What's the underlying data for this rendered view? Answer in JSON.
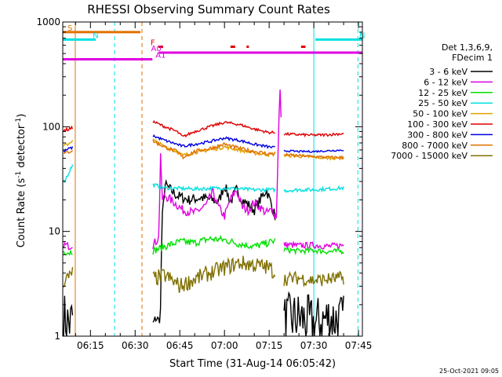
{
  "chart_data": {
    "type": "line",
    "title": "RHESSI Observing Summary Count Rates",
    "xlabel": "Start Time (31-Aug-14 06:05:42)",
    "ylabel_main": "Count Rate (s",
    "ylabel_sup": "-1",
    "ylabel_rest": " detector",
    "ylabel_end": ")",
    "x_start_minutes": 365.7,
    "xlim": [
      365.7,
      466.3
    ],
    "ylim": [
      1,
      1000
    ],
    "yscale": "log",
    "x_ticks": [
      {
        "t": 375,
        "label": "06:15"
      },
      {
        "t": 390,
        "label": "06:30"
      },
      {
        "t": 405,
        "label": "06:45"
      },
      {
        "t": 420,
        "label": "07:00"
      },
      {
        "t": 435,
        "label": "07:15"
      },
      {
        "t": 450,
        "label": "07:30"
      },
      {
        "t": 465,
        "label": "07:45"
      }
    ],
    "y_ticks": [
      {
        "v": 1,
        "label": "1"
      },
      {
        "v": 10,
        "label": "10"
      },
      {
        "v": 100,
        "label": "100"
      },
      {
        "v": 1000,
        "label": "1000"
      }
    ],
    "legend_header": [
      "Det 1,3,6,9,",
      "FDecim 1"
    ],
    "legend_placement": "right",
    "series": [
      {
        "name": "3 - 6 keV",
        "color": "#000000",
        "segments": [
          {
            "x": [
              366,
              368,
              369
            ],
            "y": [
              1.5,
              1.3,
              1.5
            ],
            "noise": 0.6
          },
          {
            "x": [
              396,
              397,
              398,
              398.5,
              399,
              400,
              404,
              408,
              412,
              416,
              418,
              420,
              422,
              424,
              426,
              428,
              430,
              432,
              434,
              435,
              437
            ],
            "y": [
              1.3,
              1.5,
              1.4,
              1.6,
              12,
              28,
              22,
              20,
              21,
              20,
              19,
              28,
              19,
              25,
              20,
              18,
              16,
              20,
              25,
              21,
              14
            ],
            "noise": 0.12
          },
          {
            "x": [
              440,
              445,
              450,
              455,
              460
            ],
            "y": [
              1.4,
              1.5,
              1.3,
              1.5,
              1.4
            ],
            "noise": 0.6
          }
        ]
      },
      {
        "name": "6 - 12 keV",
        "color": "#e000e0",
        "segments": [
          {
            "x": [
              366,
              368,
              369
            ],
            "y": [
              7.5,
              7.2,
              7.5
            ],
            "noise": 0.08
          },
          {
            "x": [
              396,
              397,
              398,
              398.5,
              399,
              400,
              403,
              406,
              410,
              414,
              416,
              418,
              420,
              422,
              424,
              426,
              428,
              430,
              432,
              434,
              436,
              437.5,
              438,
              438.6,
              439
            ],
            "y": [
              7.5,
              8,
              9,
              60,
              20,
              22,
              19,
              16,
              15,
              18,
              24,
              17,
              14,
              20,
              25,
              17,
              16,
              19,
              17,
              15,
              16,
              14,
              60,
              260,
              120
            ],
            "noise": 0.1
          },
          {
            "x": [
              440,
              445,
              450,
              455,
              460
            ],
            "y": [
              7.5,
              7.3,
              7.4,
              7.2,
              7.4
            ],
            "noise": 0.07
          }
        ]
      },
      {
        "name": "12 - 25 keV",
        "color": "#00e000",
        "segments": [
          {
            "x": [
              366,
              368,
              369
            ],
            "y": [
              6.5,
              6.3,
              6.5
            ],
            "noise": 0.08
          },
          {
            "x": [
              396,
              400,
              405,
              410,
              415,
              420,
              425,
              430,
              435,
              437
            ],
            "y": [
              6.5,
              7.2,
              8.0,
              7.8,
              8.5,
              8.3,
              7.6,
              7.2,
              7.8,
              8.2
            ],
            "noise": 0.08
          },
          {
            "x": [
              440,
              445,
              450,
              455,
              460
            ],
            "y": [
              6.7,
              6.5,
              6.6,
              6.4,
              6.5
            ],
            "noise": 0.06
          }
        ]
      },
      {
        "name": "25 - 50 keV",
        "color": "#00e0e0",
        "segments": [
          {
            "x": [
              366,
              367,
              368,
              369
            ],
            "y": [
              30,
              33,
              38,
              43
            ],
            "noise": 0.05
          },
          {
            "x": [
              396,
              400,
              410,
              420,
              430,
              437
            ],
            "y": [
              28,
              26,
              25.5,
              26,
              25,
              25
            ],
            "noise": 0.04
          },
          {
            "x": [
              440,
              445,
              450,
              455,
              460
            ],
            "y": [
              24.5,
              25,
              25,
              25.5,
              26
            ],
            "noise": 0.04
          }
        ]
      },
      {
        "name": "50 - 100 keV",
        "color": "#e0a000",
        "segments": [
          {
            "x": [
              366,
              368,
              369
            ],
            "y": [
              65,
              70,
              75
            ],
            "noise": 0.04
          },
          {
            "x": [
              396,
              400,
              404,
              406,
              410,
              415,
              420,
              425,
              430,
              435,
              437
            ],
            "y": [
              75,
              64,
              58,
              53,
              57,
              60,
              64,
              60,
              56,
              54,
              55
            ],
            "noise": 0.04
          },
          {
            "x": [
              440,
              445,
              450,
              455,
              460
            ],
            "y": [
              53,
              52,
              51,
              50,
              50
            ],
            "noise": 0.03
          }
        ]
      },
      {
        "name": "100 - 300 keV",
        "color": "#e00000",
        "segments": [
          {
            "x": [
              366,
              368,
              369
            ],
            "y": [
              92,
              95,
              97
            ],
            "noise": 0.04
          },
          {
            "x": [
              396,
              400,
              404,
              406,
              410,
              415,
              420,
              425,
              430,
              435,
              437
            ],
            "y": [
              112,
              100,
              90,
              80,
              90,
              100,
              110,
              105,
              95,
              88,
              88
            ],
            "noise": 0.03
          },
          {
            "x": [
              440,
              445,
              450,
              455,
              460
            ],
            "y": [
              85,
              84,
              83,
              84,
              86
            ],
            "noise": 0.03
          }
        ]
      },
      {
        "name": "300 - 800 keV",
        "color": "#0000e0",
        "segments": [
          {
            "x": [
              366,
              368,
              369
            ],
            "y": [
              58,
              62,
              63
            ],
            "noise": 0.03
          },
          {
            "x": [
              396,
              400,
              404,
              406,
              410,
              415,
              420,
              425,
              430,
              435,
              437
            ],
            "y": [
              82,
              74,
              68,
              65,
              68,
              72,
              78,
              74,
              68,
              64,
              63
            ],
            "noise": 0.03
          },
          {
            "x": [
              440,
              445,
              450,
              455,
              460
            ],
            "y": [
              59,
              58,
              58,
              59,
              60
            ],
            "noise": 0.02
          }
        ]
      },
      {
        "name": "800 - 7000 keV",
        "color": "#e07000",
        "segments": [
          {
            "x": [
              366,
              368,
              369
            ],
            "y": [
              55,
              58,
              60
            ],
            "noise": 0.04
          },
          {
            "x": [
              396,
              400,
              404,
              406,
              410,
              415,
              420,
              425,
              430,
              435,
              437
            ],
            "y": [
              73,
              64,
              58,
              51,
              58,
              62,
              68,
              62,
              58,
              55,
              56
            ],
            "noise": 0.04
          },
          {
            "x": [
              440,
              445,
              450,
              455,
              460
            ],
            "y": [
              54,
              53,
              52,
              51,
              51
            ],
            "noise": 0.03
          }
        ]
      },
      {
        "name": "7000 - 15000 keV",
        "color": "#807000",
        "segments": [
          {
            "x": [
              366,
              368,
              369
            ],
            "y": [
              3.4,
              3.6,
              4.2
            ],
            "noise": 0.18
          },
          {
            "x": [
              396,
              400,
              405,
              410,
              415,
              420,
              425,
              430,
              435,
              437
            ],
            "y": [
              3.5,
              3.8,
              3.0,
              3.5,
              4.0,
              4.5,
              5.0,
              4.8,
              4.5,
              4.0
            ],
            "noise": 0.18
          },
          {
            "x": [
              440,
              445,
              450,
              455,
              460
            ],
            "y": [
              3.5,
              3.6,
              3.4,
              3.5,
              3.6
            ],
            "noise": 0.15
          }
        ]
      }
    ],
    "state_bars": [
      {
        "label": "S",
        "color": "#e07000",
        "x": [
          365.7,
          391.8
        ],
        "y": 800
      },
      {
        "label": "N",
        "color": "#00e0e0",
        "x": [
          365.7,
          376.8
        ],
        "y": 680
      },
      {
        "label": "N",
        "color": "#00e0e0",
        "x": [
          450.5,
          466.3
        ],
        "y": 680
      },
      {
        "label": "F",
        "color": "#e00000",
        "x": [
          397.8,
          399.4
        ],
        "y": 580
      },
      {
        "label": "",
        "color": "#e00000",
        "x": [
          422.0,
          423.6
        ],
        "y": 580
      },
      {
        "label": "",
        "color": "#e00000",
        "x": [
          427.4,
          428.2
        ],
        "y": 580
      },
      {
        "label": "",
        "color": "#e00000",
        "x": [
          445.7,
          447.2
        ],
        "y": 580
      },
      {
        "label": "A0",
        "color": "#e000e0",
        "x": [
          398.0,
          466.3
        ],
        "y": 510
      },
      {
        "label": "A1",
        "color": "#e000e0",
        "x": [
          365.7,
          395.8
        ],
        "y": 440
      }
    ],
    "vertical_lines": [
      {
        "t": 369.9,
        "color": "#e07000",
        "style": "solid"
      },
      {
        "t": 383.1,
        "color": "#00e0e0",
        "style": "dashed"
      },
      {
        "t": 392.3,
        "color": "#e07000",
        "style": "dashed"
      },
      {
        "t": 450.0,
        "color": "#00e0e0",
        "style": "solid"
      },
      {
        "t": 464.8,
        "color": "#00e0e0",
        "style": "dashed"
      }
    ],
    "timestamp": "25-Oct-2021 09:05"
  }
}
